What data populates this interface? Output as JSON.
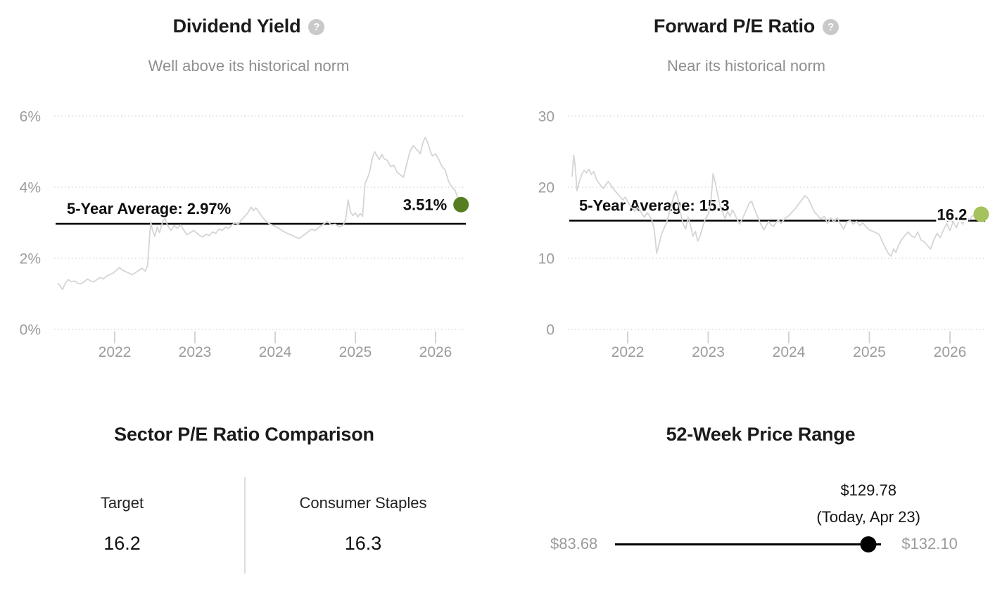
{
  "page": {
    "background": "#ffffff"
  },
  "chart_data": [
    {
      "type": "line",
      "title": "Dividend Yield",
      "subtitle": "Well above its historical norm",
      "help_glyph": "?",
      "legend_position": "none",
      "grid": "horizontal-dotted",
      "xlim": [
        2021.29,
        2026.37
      ],
      "ylim": [
        0,
        6.6
      ],
      "x_ticks": [
        "2022",
        "2023",
        "2024",
        "2025",
        "2026"
      ],
      "y_ticks": [
        {
          "value": 6,
          "label": "6%"
        },
        {
          "value": 4,
          "label": "4%"
        },
        {
          "value": 2,
          "label": "2%"
        },
        {
          "value": 0,
          "label": "0%"
        }
      ],
      "series_color": "#d5d5d5",
      "average": {
        "value": 2.97,
        "label": "5-Year Average: 2.97%"
      },
      "current": {
        "value": 3.51,
        "label": "3.51%",
        "dot_color": "#567d22"
      },
      "series": [
        [
          2021.29,
          1.3
        ],
        [
          2021.32,
          1.22
        ],
        [
          2021.35,
          1.12
        ],
        [
          2021.38,
          1.28
        ],
        [
          2021.42,
          1.4
        ],
        [
          2021.46,
          1.34
        ],
        [
          2021.5,
          1.36
        ],
        [
          2021.54,
          1.3
        ],
        [
          2021.58,
          1.28
        ],
        [
          2021.62,
          1.34
        ],
        [
          2021.66,
          1.42
        ],
        [
          2021.7,
          1.36
        ],
        [
          2021.74,
          1.34
        ],
        [
          2021.78,
          1.4
        ],
        [
          2021.82,
          1.46
        ],
        [
          2021.86,
          1.42
        ],
        [
          2021.9,
          1.5
        ],
        [
          2021.94,
          1.54
        ],
        [
          2021.98,
          1.58
        ],
        [
          2022.02,
          1.66
        ],
        [
          2022.06,
          1.74
        ],
        [
          2022.1,
          1.66
        ],
        [
          2022.14,
          1.62
        ],
        [
          2022.18,
          1.58
        ],
        [
          2022.22,
          1.54
        ],
        [
          2022.26,
          1.6
        ],
        [
          2022.3,
          1.66
        ],
        [
          2022.34,
          1.72
        ],
        [
          2022.38,
          1.64
        ],
        [
          2022.41,
          1.8
        ],
        [
          2022.43,
          2.45
        ],
        [
          2022.45,
          3.02
        ],
        [
          2022.47,
          2.8
        ],
        [
          2022.5,
          2.62
        ],
        [
          2022.53,
          2.88
        ],
        [
          2022.56,
          2.72
        ],
        [
          2022.6,
          3.05
        ],
        [
          2022.63,
          3.12
        ],
        [
          2022.66,
          2.92
        ],
        [
          2022.7,
          2.78
        ],
        [
          2022.74,
          2.92
        ],
        [
          2022.78,
          2.84
        ],
        [
          2022.82,
          2.94
        ],
        [
          2022.86,
          2.8
        ],
        [
          2022.9,
          2.66
        ],
        [
          2022.94,
          2.72
        ],
        [
          2022.98,
          2.78
        ],
        [
          2023.02,
          2.72
        ],
        [
          2023.06,
          2.64
        ],
        [
          2023.1,
          2.6
        ],
        [
          2023.14,
          2.68
        ],
        [
          2023.18,
          2.64
        ],
        [
          2023.22,
          2.74
        ],
        [
          2023.26,
          2.7
        ],
        [
          2023.3,
          2.82
        ],
        [
          2023.34,
          2.78
        ],
        [
          2023.38,
          2.88
        ],
        [
          2023.42,
          2.84
        ],
        [
          2023.46,
          2.94
        ],
        [
          2023.5,
          3.0
        ],
        [
          2023.54,
          2.96
        ],
        [
          2023.58,
          3.08
        ],
        [
          2023.62,
          3.18
        ],
        [
          2023.66,
          3.28
        ],
        [
          2023.7,
          3.44
        ],
        [
          2023.73,
          3.34
        ],
        [
          2023.76,
          3.42
        ],
        [
          2023.8,
          3.3
        ],
        [
          2023.84,
          3.16
        ],
        [
          2023.88,
          3.06
        ],
        [
          2023.92,
          2.98
        ],
        [
          2023.96,
          2.94
        ],
        [
          2024.0,
          2.9
        ],
        [
          2024.05,
          2.84
        ],
        [
          2024.1,
          2.76
        ],
        [
          2024.15,
          2.7
        ],
        [
          2024.2,
          2.66
        ],
        [
          2024.25,
          2.6
        ],
        [
          2024.3,
          2.56
        ],
        [
          2024.35,
          2.64
        ],
        [
          2024.4,
          2.72
        ],
        [
          2024.45,
          2.82
        ],
        [
          2024.5,
          2.78
        ],
        [
          2024.55,
          2.88
        ],
        [
          2024.6,
          2.96
        ],
        [
          2024.65,
          3.04
        ],
        [
          2024.7,
          2.94
        ],
        [
          2024.75,
          2.96
        ],
        [
          2024.8,
          2.88
        ],
        [
          2024.85,
          2.94
        ],
        [
          2024.88,
          3.1
        ],
        [
          2024.91,
          3.64
        ],
        [
          2024.94,
          3.3
        ],
        [
          2024.97,
          3.2
        ],
        [
          2025.0,
          3.28
        ],
        [
          2025.03,
          3.16
        ],
        [
          2025.06,
          3.26
        ],
        [
          2025.09,
          3.18
        ],
        [
          2025.12,
          4.1
        ],
        [
          2025.15,
          4.25
        ],
        [
          2025.18,
          4.45
        ],
        [
          2025.21,
          4.8
        ],
        [
          2025.24,
          5.0
        ],
        [
          2025.27,
          4.88
        ],
        [
          2025.3,
          4.78
        ],
        [
          2025.33,
          4.92
        ],
        [
          2025.36,
          4.8
        ],
        [
          2025.4,
          4.75
        ],
        [
          2025.44,
          4.58
        ],
        [
          2025.48,
          4.62
        ],
        [
          2025.52,
          4.42
        ],
        [
          2025.56,
          4.35
        ],
        [
          2025.6,
          4.28
        ],
        [
          2025.64,
          4.65
        ],
        [
          2025.68,
          5.0
        ],
        [
          2025.72,
          5.17
        ],
        [
          2025.75,
          5.1
        ],
        [
          2025.78,
          5.02
        ],
        [
          2025.81,
          4.94
        ],
        [
          2025.84,
          5.24
        ],
        [
          2025.87,
          5.4
        ],
        [
          2025.9,
          5.27
        ],
        [
          2025.93,
          5.04
        ],
        [
          2025.96,
          4.88
        ],
        [
          2026.0,
          4.94
        ],
        [
          2026.04,
          4.78
        ],
        [
          2026.08,
          4.58
        ],
        [
          2026.12,
          4.48
        ],
        [
          2026.16,
          4.18
        ],
        [
          2026.2,
          4.02
        ],
        [
          2026.24,
          3.92
        ],
        [
          2026.27,
          3.75
        ],
        [
          2026.3,
          3.51
        ]
      ]
    },
    {
      "type": "line",
      "title": "Forward P/E Ratio",
      "subtitle": "Near its historical norm",
      "help_glyph": "?",
      "legend_position": "none",
      "grid": "horizontal-dotted",
      "xlim": [
        2021.31,
        2026.37
      ],
      "ylim": [
        0,
        33
      ],
      "x_ticks": [
        "2022",
        "2023",
        "2024",
        "2025",
        "2026"
      ],
      "y_ticks": [
        {
          "value": 30,
          "label": "30"
        },
        {
          "value": 20,
          "label": "20"
        },
        {
          "value": 10,
          "label": "10"
        },
        {
          "value": 0,
          "label": "0"
        }
      ],
      "series_color": "#d5d5d5",
      "average": {
        "value": 15.3,
        "label": "5-Year Average: 15.3"
      },
      "current": {
        "value": 16.2,
        "label": "16.2",
        "dot_color": "#a5c25c"
      },
      "series": [
        [
          2021.31,
          21.5
        ],
        [
          2021.33,
          24.5
        ],
        [
          2021.35,
          22.8
        ],
        [
          2021.37,
          19.5
        ],
        [
          2021.4,
          20.8
        ],
        [
          2021.43,
          21.8
        ],
        [
          2021.46,
          22.4
        ],
        [
          2021.49,
          22.0
        ],
        [
          2021.52,
          22.5
        ],
        [
          2021.55,
          21.8
        ],
        [
          2021.58,
          22.2
        ],
        [
          2021.61,
          21.2
        ],
        [
          2021.64,
          20.6
        ],
        [
          2021.67,
          20.2
        ],
        [
          2021.7,
          19.8
        ],
        [
          2021.73,
          20.4
        ],
        [
          2021.76,
          20.8
        ],
        [
          2021.79,
          20.3
        ],
        [
          2021.82,
          19.8
        ],
        [
          2021.85,
          19.4
        ],
        [
          2021.88,
          19.0
        ],
        [
          2021.91,
          18.6
        ],
        [
          2021.94,
          18.2
        ],
        [
          2021.97,
          18.6
        ],
        [
          2022.0,
          18.0
        ],
        [
          2022.03,
          17.4
        ],
        [
          2022.06,
          17.0
        ],
        [
          2022.09,
          16.6
        ],
        [
          2022.12,
          17.2
        ],
        [
          2022.15,
          16.8
        ],
        [
          2022.18,
          16.2
        ],
        [
          2022.21,
          15.8
        ],
        [
          2022.24,
          16.4
        ],
        [
          2022.27,
          16.0
        ],
        [
          2022.3,
          15.4
        ],
        [
          2022.33,
          14.0
        ],
        [
          2022.36,
          10.7
        ],
        [
          2022.39,
          12.0
        ],
        [
          2022.42,
          13.4
        ],
        [
          2022.45,
          14.2
        ],
        [
          2022.48,
          15.0
        ],
        [
          2022.51,
          16.1
        ],
        [
          2022.54,
          17.4
        ],
        [
          2022.57,
          18.6
        ],
        [
          2022.6,
          19.5
        ],
        [
          2022.63,
          18.0
        ],
        [
          2022.66,
          16.1
        ],
        [
          2022.69,
          14.8
        ],
        [
          2022.72,
          14.1
        ],
        [
          2022.75,
          15.8
        ],
        [
          2022.78,
          14.6
        ],
        [
          2022.81,
          13.1
        ],
        [
          2022.84,
          13.8
        ],
        [
          2022.87,
          12.4
        ],
        [
          2022.9,
          13.2
        ],
        [
          2022.93,
          14.4
        ],
        [
          2022.96,
          15.4
        ],
        [
          2023.0,
          16.2
        ],
        [
          2023.03,
          17.5
        ],
        [
          2023.06,
          21.9
        ],
        [
          2023.09,
          20.5
        ],
        [
          2023.12,
          18.8
        ],
        [
          2023.15,
          17.2
        ],
        [
          2023.18,
          16.4
        ],
        [
          2023.21,
          15.6
        ],
        [
          2023.24,
          16.6
        ],
        [
          2023.27,
          15.9
        ],
        [
          2023.3,
          16.8
        ],
        [
          2023.33,
          16.2
        ],
        [
          2023.36,
          15.4
        ],
        [
          2023.39,
          14.8
        ],
        [
          2023.42,
          15.5
        ],
        [
          2023.45,
          16.2
        ],
        [
          2023.48,
          17.0
        ],
        [
          2023.51,
          17.8
        ],
        [
          2023.54,
          18.0
        ],
        [
          2023.57,
          17.0
        ],
        [
          2023.6,
          16.2
        ],
        [
          2023.63,
          15.4
        ],
        [
          2023.66,
          14.6
        ],
        [
          2023.69,
          14.0
        ],
        [
          2023.72,
          14.6
        ],
        [
          2023.75,
          15.2
        ],
        [
          2023.78,
          14.7
        ],
        [
          2023.81,
          14.5
        ],
        [
          2023.84,
          15.0
        ],
        [
          2023.87,
          15.4
        ],
        [
          2023.9,
          14.9
        ],
        [
          2023.93,
          15.3
        ],
        [
          2023.96,
          15.7
        ],
        [
          2024.0,
          16.0
        ],
        [
          2024.04,
          16.5
        ],
        [
          2024.08,
          17.0
        ],
        [
          2024.12,
          17.6
        ],
        [
          2024.16,
          18.2
        ],
        [
          2024.2,
          18.8
        ],
        [
          2024.24,
          18.4
        ],
        [
          2024.28,
          17.4
        ],
        [
          2024.32,
          16.5
        ],
        [
          2024.36,
          16.0
        ],
        [
          2024.4,
          15.5
        ],
        [
          2024.44,
          15.9
        ],
        [
          2024.48,
          14.9
        ],
        [
          2024.52,
          15.7
        ],
        [
          2024.56,
          15.1
        ],
        [
          2024.6,
          15.7
        ],
        [
          2024.64,
          14.8
        ],
        [
          2024.68,
          14.1
        ],
        [
          2024.72,
          15.1
        ],
        [
          2024.76,
          15.3
        ],
        [
          2024.8,
          14.8
        ],
        [
          2024.84,
          15.2
        ],
        [
          2024.88,
          14.6
        ],
        [
          2024.92,
          15.0
        ],
        [
          2024.96,
          14.4
        ],
        [
          2025.0,
          14.0
        ],
        [
          2025.04,
          13.8
        ],
        [
          2025.08,
          13.6
        ],
        [
          2025.12,
          13.4
        ],
        [
          2025.16,
          12.4
        ],
        [
          2025.2,
          11.4
        ],
        [
          2025.24,
          10.6
        ],
        [
          2025.27,
          10.3
        ],
        [
          2025.3,
          11.3
        ],
        [
          2025.33,
          10.8
        ],
        [
          2025.36,
          11.8
        ],
        [
          2025.4,
          12.6
        ],
        [
          2025.44,
          13.2
        ],
        [
          2025.48,
          13.7
        ],
        [
          2025.52,
          13.2
        ],
        [
          2025.56,
          12.9
        ],
        [
          2025.6,
          13.7
        ],
        [
          2025.64,
          12.6
        ],
        [
          2025.68,
          12.3
        ],
        [
          2025.72,
          11.8
        ],
        [
          2025.76,
          11.3
        ],
        [
          2025.8,
          12.6
        ],
        [
          2025.84,
          13.5
        ],
        [
          2025.88,
          12.9
        ],
        [
          2025.92,
          14.0
        ],
        [
          2025.96,
          14.9
        ],
        [
          2026.0,
          13.9
        ],
        [
          2026.04,
          15.2
        ],
        [
          2026.08,
          14.3
        ],
        [
          2026.12,
          15.5
        ],
        [
          2026.16,
          14.8
        ],
        [
          2026.2,
          16.0
        ],
        [
          2026.24,
          15.4
        ],
        [
          2026.28,
          16.0
        ],
        [
          2026.33,
          15.8
        ],
        [
          2026.37,
          16.2
        ]
      ]
    }
  ],
  "sector_comparison": {
    "title": "Sector P/E Ratio Comparison",
    "columns": [
      {
        "label": "Target",
        "value": "16.2"
      },
      {
        "label": "Consumer Staples",
        "value": "16.3"
      }
    ]
  },
  "price_range": {
    "title": "52-Week Price Range",
    "low": "$83.68",
    "high": "$132.10",
    "low_value": 83.68,
    "high_value": 132.1,
    "current_value": 129.78,
    "current_price": "$129.78",
    "current_note": "(Today, Apr 23)"
  }
}
